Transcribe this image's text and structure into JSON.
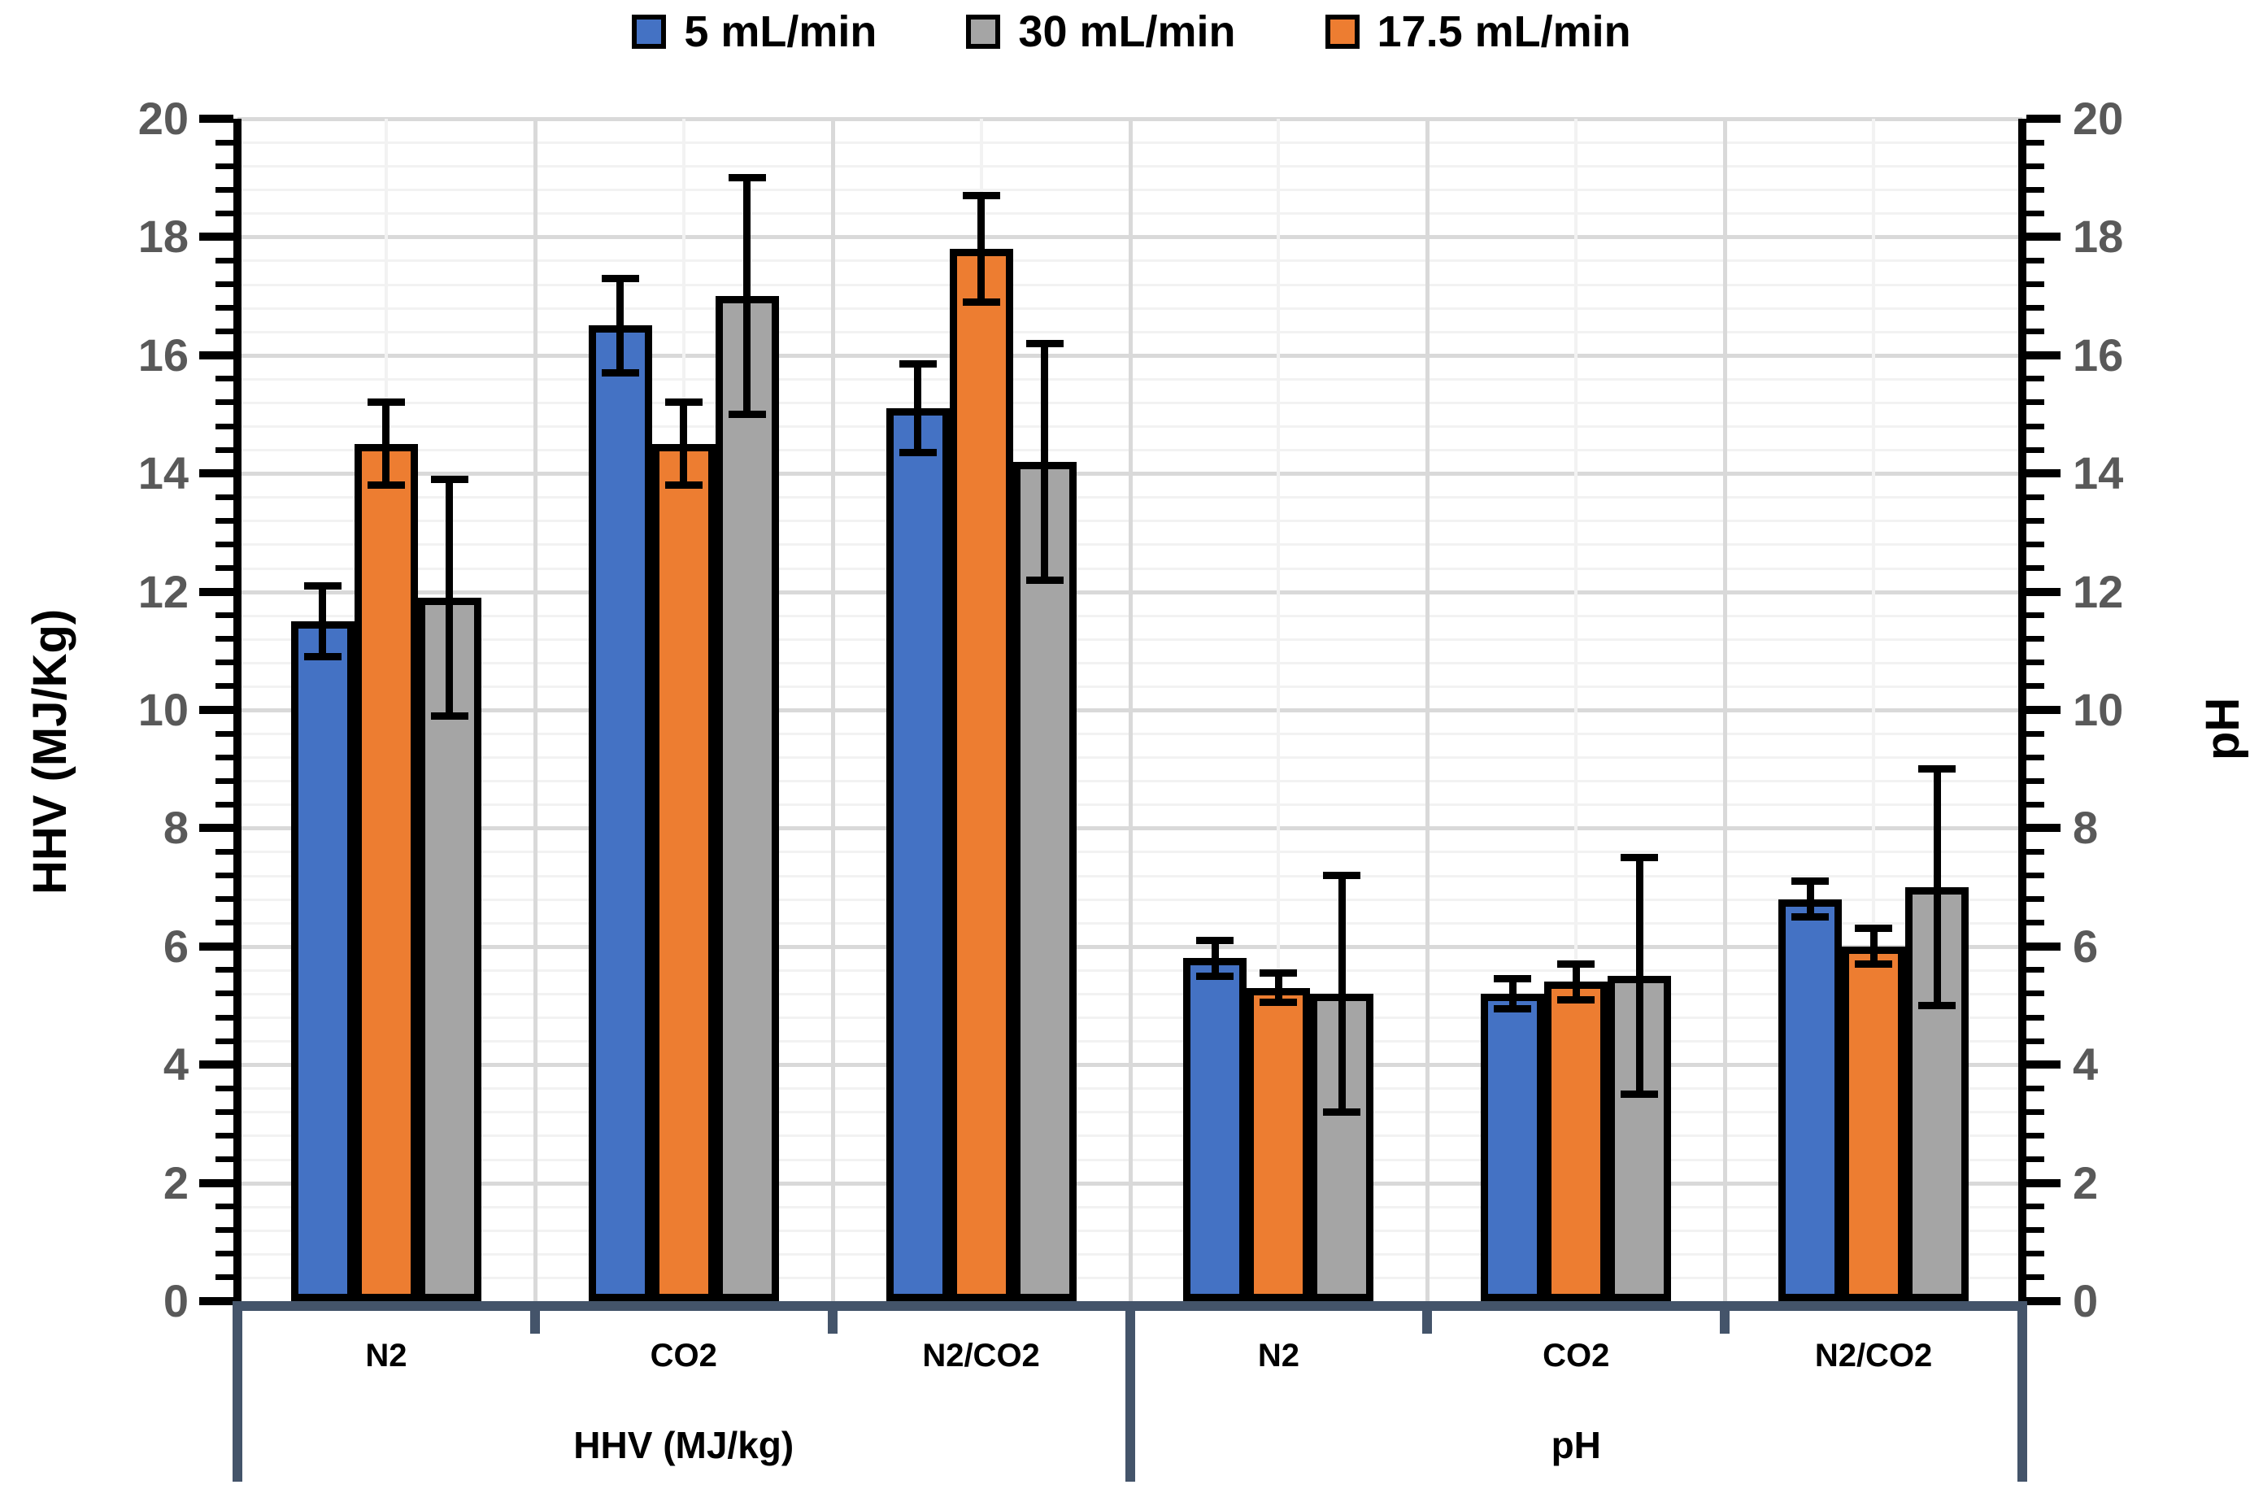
{
  "legend": {
    "items": [
      {
        "label": "5 mL/min",
        "color": "#4472C4"
      },
      {
        "label": "30 mL/min",
        "color": "#A5A5A5"
      },
      {
        "label": "17.5 mL/min",
        "color": "#ED7D31"
      }
    ]
  },
  "axes": {
    "left_title": "HHV (MJ/Kg)",
    "right_title": "pH",
    "tick_color_hex": "#595959",
    "bottom_axis_color_hex": "#44546A"
  },
  "chart_data": {
    "type": "bar",
    "title": "",
    "left_axis": {
      "label": "HHV (MJ/Kg)",
      "min": 0,
      "max": 20,
      "major_step": 2,
      "minor_step": 0.4,
      "tick_labels": [
        0,
        2,
        4,
        6,
        8,
        10,
        12,
        14,
        16,
        18,
        20
      ]
    },
    "right_axis": {
      "label": "pH",
      "min": 0,
      "max": 20,
      "major_step": 2,
      "minor_step": 0.4,
      "tick_labels": [
        0,
        2,
        4,
        6,
        8,
        10,
        12,
        14,
        16,
        18,
        20
      ]
    },
    "categories": [
      "N2",
      "CO2",
      "N2/CO2",
      "N2",
      "CO2",
      "N2/CO2"
    ],
    "category_groups": [
      {
        "label": "HHV (MJ/kg)",
        "span": [
          0,
          2
        ]
      },
      {
        "label": "pH",
        "span": [
          3,
          5
        ]
      }
    ],
    "grid": {
      "horizontal_major": true,
      "horizontal_minor": true,
      "vertical_major": true,
      "vertical_minor": true
    },
    "legend_position": "top",
    "series": [
      {
        "name": "5 mL/min",
        "color": "#4472C4",
        "cluster_position": "left",
        "values": [
          11.5,
          16.5,
          15.1,
          5.8,
          5.2,
          6.8
        ],
        "errors": [
          0.6,
          0.8,
          0.75,
          0.3,
          0.25,
          0.3
        ]
      },
      {
        "name": "17.5 mL/min",
        "color": "#ED7D31",
        "cluster_position": "middle",
        "values": [
          14.5,
          14.5,
          17.8,
          5.3,
          5.4,
          6.0
        ],
        "errors": [
          0.7,
          0.7,
          0.9,
          0.25,
          0.3,
          0.3
        ]
      },
      {
        "name": "30 mL/min",
        "color": "#A5A5A5",
        "cluster_position": "right",
        "values": [
          11.9,
          17.0,
          14.2,
          5.2,
          5.5,
          7.0
        ],
        "errors": [
          2.0,
          2.0,
          2.0,
          2.0,
          2.0,
          2.0
        ]
      }
    ]
  }
}
